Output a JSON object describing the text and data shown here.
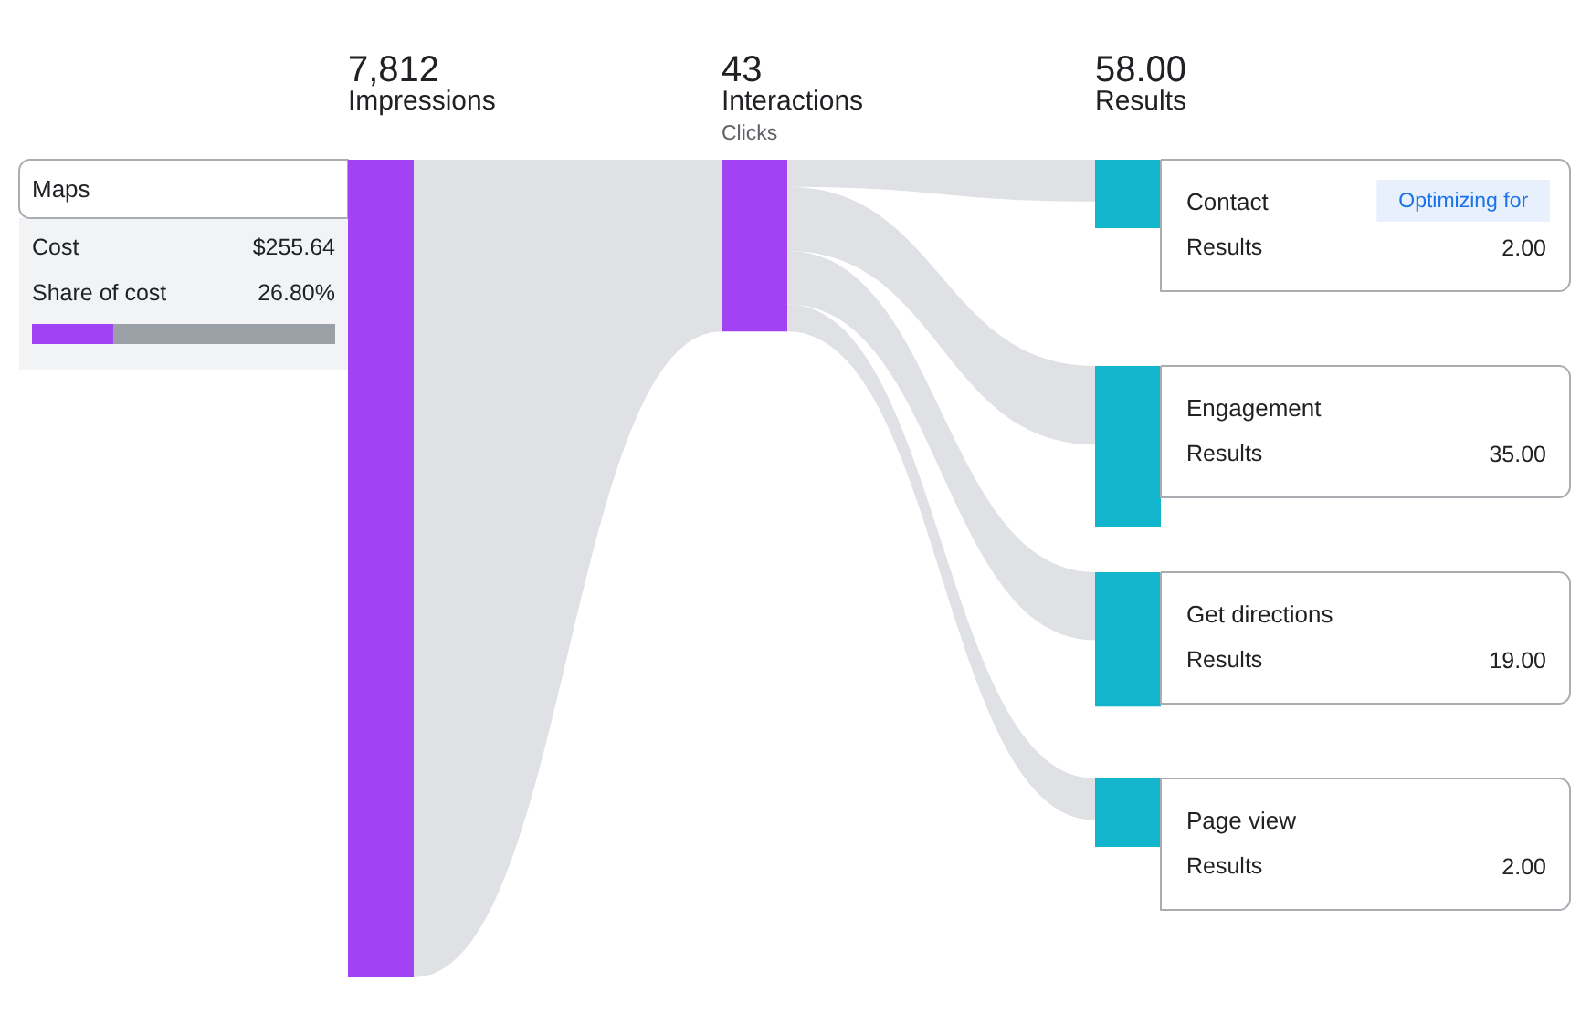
{
  "chart_data": [
    {
      "type": "other",
      "title": "Maps",
      "categories": [
        "Cost",
        "Share of cost"
      ],
      "values": [
        255.64,
        26.8
      ],
      "value_labels": [
        "$255.64",
        "26.80%"
      ],
      "color": "#a142f4"
    },
    {
      "type": "other",
      "categories": [
        "Impressions",
        "Interactions",
        "Results"
      ],
      "values": [
        7812,
        43,
        58
      ],
      "value_labels": [
        "7,812",
        "43",
        "58.00"
      ],
      "color": "#a142f4",
      "annotations": [
        {
          "text": "Clicks",
          "x": "Interactions"
        }
      ]
    },
    {
      "type": "other",
      "title": "Contact",
      "categories": [
        "Results"
      ],
      "values": [
        2
      ],
      "value_labels": [
        "2.00"
      ],
      "color": "#12b5cb",
      "annotations": [
        "Optimizing for"
      ]
    },
    {
      "type": "other",
      "title": "Engagement",
      "categories": [
        "Results"
      ],
      "values": [
        35
      ],
      "value_labels": [
        "35.00"
      ],
      "color": "#12b5cb"
    },
    {
      "type": "other",
      "title": "Get directions",
      "categories": [
        "Results"
      ],
      "values": [
        19
      ],
      "value_labels": [
        "19.00"
      ],
      "color": "#12b5cb"
    },
    {
      "type": "other",
      "title": "Page view",
      "categories": [
        "Results"
      ],
      "values": [
        2
      ],
      "value_labels": [
        "2.00"
      ],
      "color": "#12b5cb"
    }
  ]
}
